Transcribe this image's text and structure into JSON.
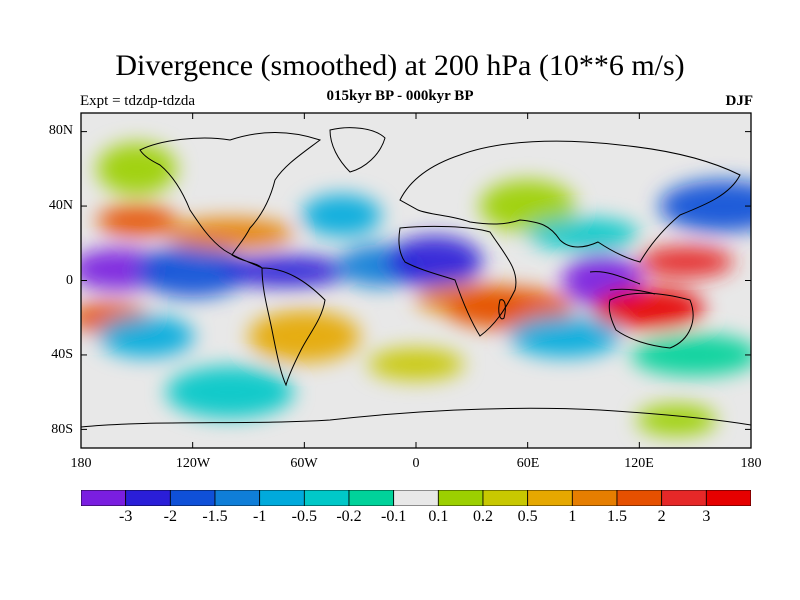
{
  "title": "Divergence (smoothed) at 200 hPa (10**6 m/s)",
  "expt": "Expt = tdzdp-tdzda",
  "period": "015kyr BP - 000kyr BP",
  "season": "DJF",
  "lat_labels": [
    "80N",
    "40N",
    "0",
    "40S",
    "80S"
  ],
  "lon_labels": [
    "180",
    "120W",
    "60W",
    "0",
    "60E",
    "120E",
    "180"
  ],
  "colorbar": {
    "labels": [
      "-3",
      "-2",
      "-1.5",
      "-1",
      "-0.5",
      "-0.2",
      "-0.1",
      "0.1",
      "0.2",
      "0.5",
      "1",
      "1.5",
      "2",
      "3"
    ],
    "colors": [
      "#7a1ee0",
      "#2a1ed8",
      "#0f50d8",
      "#0f7ed8",
      "#00aadc",
      "#00c8c8",
      "#00d29a",
      "#e8e8e8",
      "#9cd000",
      "#c8c800",
      "#e6a800",
      "#e67e00",
      "#e65000",
      "#e62828",
      "#e60000"
    ]
  },
  "map": {
    "background_color": "#e8e8e8",
    "blobs": [
      {
        "lon": -150,
        "lat": 32,
        "color": "#e65000"
      },
      {
        "lon": -160,
        "lat": 6,
        "color": "#7a1ee0"
      },
      {
        "lon": -120,
        "lat": 5,
        "color": "#0f50d8"
      },
      {
        "lon": -70,
        "lat": 5,
        "color": "#2a1ed8"
      },
      {
        "lon": -20,
        "lat": 8,
        "color": "#0f7ed8"
      },
      {
        "lon": 10,
        "lat": 10,
        "color": "#2a1ed8"
      },
      {
        "lon": 30,
        "lat": -10,
        "color": "#e67e00"
      },
      {
        "lon": 50,
        "lat": -15,
        "color": "#e65000"
      },
      {
        "lon": 100,
        "lat": 0,
        "color": "#7a1ee0"
      },
      {
        "lon": 145,
        "lat": 10,
        "color": "#e62828"
      },
      {
        "lon": 125,
        "lat": -15,
        "color": "#e60000"
      },
      {
        "lon": 165,
        "lat": 40,
        "color": "#0f50d8"
      },
      {
        "lon": -165,
        "lat": -20,
        "color": "#e65000"
      },
      {
        "lon": -145,
        "lat": -30,
        "color": "#00aadc"
      },
      {
        "lon": -60,
        "lat": -30,
        "color": "#e6a800"
      },
      {
        "lon": -100,
        "lat": 25,
        "color": "#e67e00"
      },
      {
        "lon": -40,
        "lat": 35,
        "color": "#00aadc"
      },
      {
        "lon": 60,
        "lat": 40,
        "color": "#9cd000"
      },
      {
        "lon": 90,
        "lat": 25,
        "color": "#00c8c8"
      },
      {
        "lon": 150,
        "lat": -40,
        "color": "#00d29a"
      },
      {
        "lon": -150,
        "lat": 60,
        "color": "#9cd000"
      },
      {
        "lon": 0,
        "lat": -45,
        "color": "#c8c800"
      },
      {
        "lon": 80,
        "lat": -30,
        "color": "#00aadc"
      },
      {
        "lon": -100,
        "lat": -60,
        "color": "#00c8c8"
      },
      {
        "lon": 140,
        "lat": -75,
        "color": "#9cd000"
      }
    ]
  }
}
